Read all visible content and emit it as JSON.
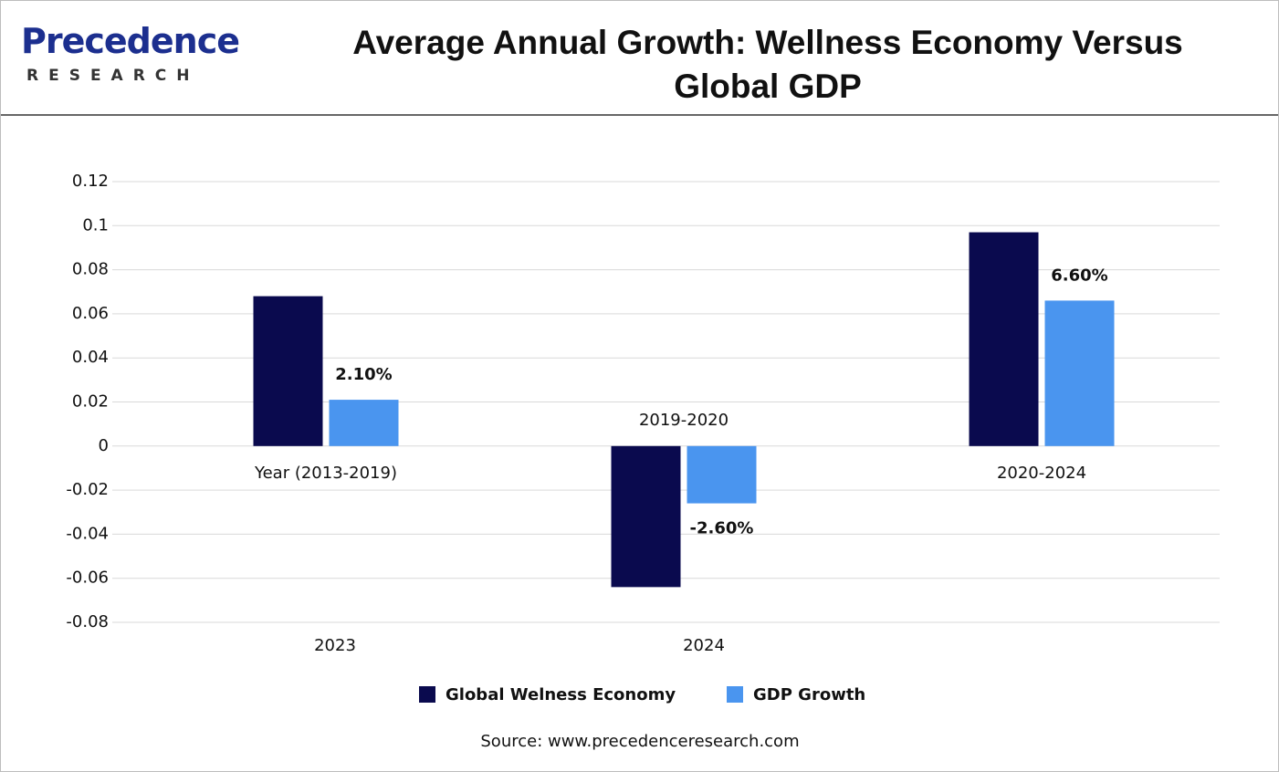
{
  "logo": {
    "name": "Precedence",
    "tagline": "RESEARCH"
  },
  "chart_data": {
    "type": "bar",
    "title": "Average Annual Growth: Wellness Economy Versus Global GDP",
    "categories": [
      "Year (2013-2019)",
      "2019-2020",
      "2020-2024"
    ],
    "secondary_categories": [
      "2023",
      "2024",
      null
    ],
    "series": [
      {
        "name": "Global Welness Economy",
        "color": "#0a0a4e",
        "values": [
          0.068,
          -0.064,
          0.097
        ]
      },
      {
        "name": "GDP Growth",
        "color": "#4a95ef",
        "values": [
          0.021,
          -0.026,
          0.066
        ],
        "value_labels": [
          "2.10%",
          "-2.60%",
          "6.60%"
        ]
      }
    ],
    "ylim": [
      -0.08,
      0.12
    ],
    "yticks": [
      -0.08,
      -0.06,
      -0.04,
      -0.02,
      0,
      0.02,
      0.04,
      0.06,
      0.08,
      0.1,
      0.12
    ],
    "grid": true,
    "legend": "bottom",
    "source": "Source: www.precedenceresearch.com"
  }
}
